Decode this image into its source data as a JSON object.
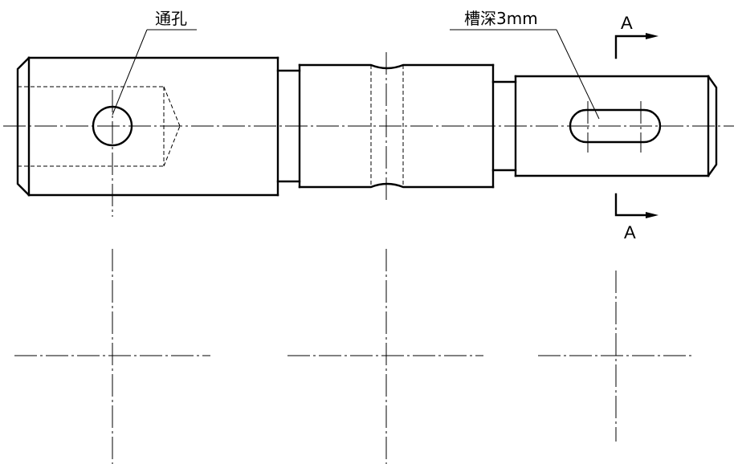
{
  "annotations": {
    "through_hole": "通孔",
    "slot_depth": "槽深3mm"
  },
  "section": {
    "top_letter": "A",
    "bottom_letter": "A"
  }
}
